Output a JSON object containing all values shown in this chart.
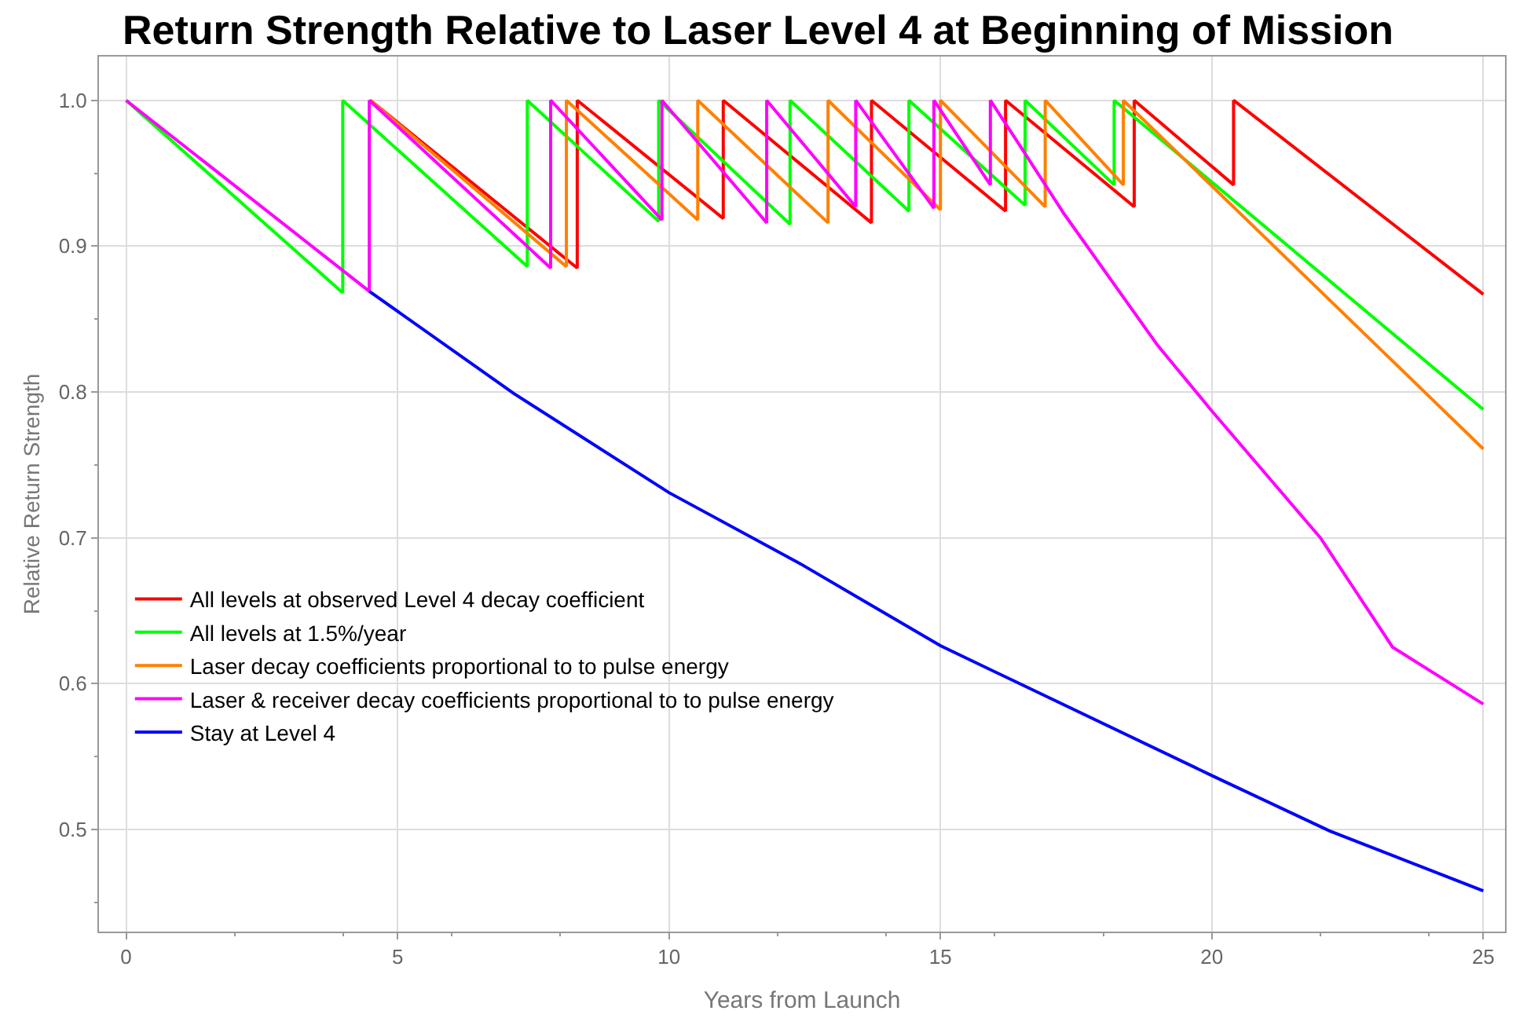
{
  "chart_data": {
    "type": "line",
    "title": "Return Strength Relative to Laser Level 4 at Beginning of Mission",
    "xlabel": "Years from Launch",
    "ylabel": "Relative Return Strength",
    "series": [
      {
        "name": "All levels at observed Level 4 decay coefficient",
        "color": "#ff0000",
        "x": [
          4.5,
          8.31,
          8.31,
          11.0,
          11.0,
          13.73,
          13.73,
          16.2,
          16.2,
          18.57,
          18.57,
          20.4,
          20.4,
          25
        ],
        "values": [
          1.0,
          0.885,
          1.0,
          0.919,
          1.0,
          0.916,
          1.0,
          0.924,
          1.0,
          0.927,
          1.0,
          0.942,
          1.0,
          0.867
        ]
      },
      {
        "name": "All levels at 1.5%/year",
        "color": "#00ff00",
        "x": [
          0,
          3.99,
          3.99,
          7.39,
          7.39,
          9.81,
          9.81,
          12.23,
          12.23,
          14.42,
          14.42,
          16.56,
          16.56,
          18.2,
          18.2,
          25
        ],
        "values": [
          1.0,
          0.868,
          1.0,
          0.886,
          1.0,
          0.917,
          1.0,
          0.915,
          1.0,
          0.924,
          1.0,
          0.928,
          1.0,
          0.942,
          1.0,
          0.788
        ]
      },
      {
        "name": "Laser decay coefficients proportional to to pulse energy",
        "color": "#ff8000",
        "x": [
          4.5,
          8.11,
          8.11,
          10.53,
          10.53,
          12.93,
          12.93,
          15.0,
          15.0,
          16.93,
          16.93,
          18.37,
          18.37,
          25
        ],
        "values": [
          1.0,
          0.886,
          1.0,
          0.918,
          1.0,
          0.916,
          1.0,
          0.925,
          1.0,
          0.927,
          1.0,
          0.942,
          1.0,
          0.761
        ]
      },
      {
        "name": "Laser & receiver decay coefficients proportional to to pulse energy",
        "color": "#ff00ff",
        "x": [
          0,
          4.48,
          4.48,
          7.82,
          7.82,
          9.87,
          9.87,
          11.8,
          11.8,
          13.44,
          13.44,
          14.88,
          14.88,
          15.92,
          15.92,
          16.41,
          17.28,
          19.0,
          20.0,
          22.0,
          23.33,
          25
        ],
        "values": [
          1.0,
          0.869,
          1.0,
          0.885,
          1.0,
          0.918,
          1.0,
          0.916,
          1.0,
          0.927,
          1.0,
          0.926,
          1.0,
          0.942,
          1.0,
          0.972,
          0.922,
          0.832,
          0.787,
          0.7,
          0.625,
          0.586
        ]
      },
      {
        "name": "Stay at Level 4",
        "color": "#0000ff",
        "x": [
          4.48,
          7.14,
          10.0,
          12.43,
          15.0,
          20.0,
          22.17,
          25
        ],
        "values": [
          0.869,
          0.799,
          0.731,
          0.682,
          0.626,
          0.537,
          0.499,
          0.458
        ]
      }
    ],
    "xlim": [
      -0.5,
      25.4
    ],
    "xticks": [
      0,
      5,
      10,
      15,
      20,
      25
    ],
    "ylim": [
      0.43,
      1.03
    ],
    "yticks": [
      {
        "value": 0.5,
        "label": "0.5"
      },
      {
        "value": 0.6,
        "label": "0.6"
      },
      {
        "value": 0.7,
        "label": "0.7"
      },
      {
        "value": 0.8,
        "label": "0.8"
      },
      {
        "value": 0.9,
        "label": "0.9"
      },
      {
        "value": 1.0,
        "label": "1.0"
      }
    ],
    "grid": true,
    "legend": "bottom left",
    "marker": "none",
    "line_style": "solid"
  }
}
